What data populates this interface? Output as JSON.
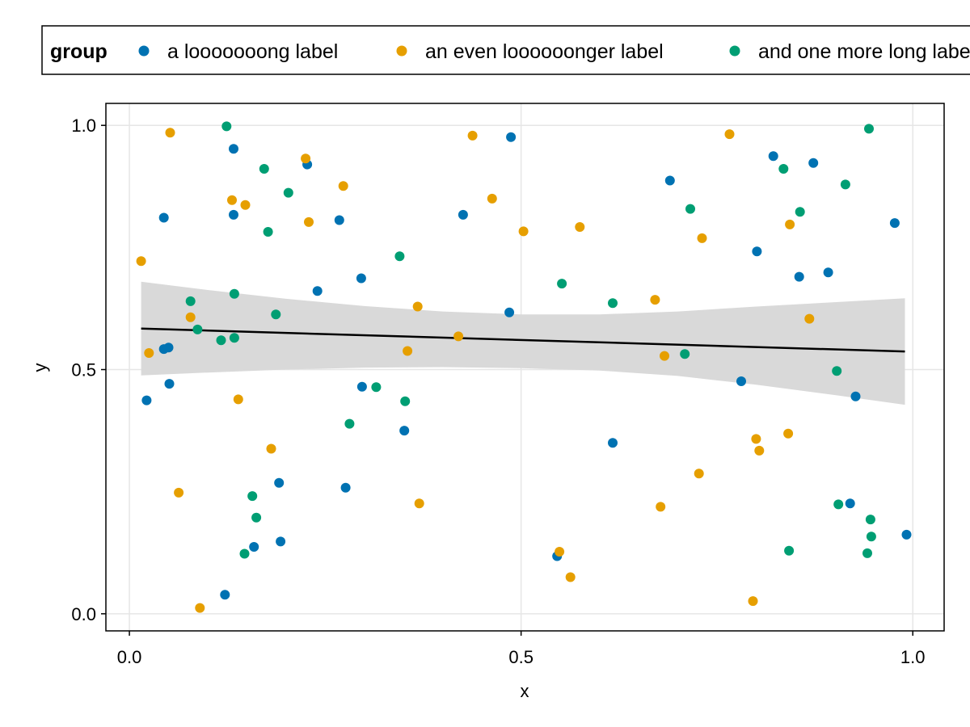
{
  "chart_data": {
    "type": "scatter",
    "xlabel": "x",
    "ylabel": "y",
    "xlim": [
      -0.03,
      1.04
    ],
    "ylim": [
      -0.035,
      1.045
    ],
    "xticks": [
      {
        "value": 0.0,
        "label": "0.0"
      },
      {
        "value": 0.5,
        "label": "0.5"
      },
      {
        "value": 1.0,
        "label": "1.0"
      }
    ],
    "yticks": [
      {
        "value": 0.0,
        "label": "0.0"
      },
      {
        "value": 0.5,
        "label": "0.5"
      },
      {
        "value": 1.0,
        "label": "1.0"
      }
    ],
    "grid": true,
    "legend": {
      "position": "top",
      "title": "group",
      "entries": [
        "a looooooong label",
        "an even loooooonger label",
        "and one more long label"
      ]
    },
    "series": [
      {
        "name": "a looooooong label",
        "color": "#0072b2",
        "points": [
          [
            0.022,
            0.437
          ],
          [
            0.044,
            0.811
          ],
          [
            0.044,
            0.542
          ],
          [
            0.05,
            0.545
          ],
          [
            0.051,
            0.471
          ],
          [
            0.122,
            0.039
          ],
          [
            0.133,
            0.952
          ],
          [
            0.133,
            0.817
          ],
          [
            0.159,
            0.137
          ],
          [
            0.191,
            0.268
          ],
          [
            0.193,
            0.148
          ],
          [
            0.227,
            0.92
          ],
          [
            0.24,
            0.661
          ],
          [
            0.268,
            0.806
          ],
          [
            0.276,
            0.258
          ],
          [
            0.296,
            0.687
          ],
          [
            0.297,
            0.465
          ],
          [
            0.351,
            0.375
          ],
          [
            0.426,
            0.817
          ],
          [
            0.485,
            0.617
          ],
          [
            0.487,
            0.976
          ],
          [
            0.546,
            0.118
          ],
          [
            0.617,
            0.35
          ],
          [
            0.69,
            0.887
          ],
          [
            0.781,
            0.476
          ],
          [
            0.801,
            0.742
          ],
          [
            0.822,
            0.937
          ],
          [
            0.855,
            0.69
          ],
          [
            0.873,
            0.923
          ],
          [
            0.892,
            0.699
          ],
          [
            0.92,
            0.226
          ],
          [
            0.927,
            0.445
          ],
          [
            0.977,
            0.8
          ],
          [
            0.992,
            0.162
          ]
        ]
      },
      {
        "name": "an even loooooonger label",
        "color": "#e69f00",
        "points": [
          [
            0.015,
            0.722
          ],
          [
            0.025,
            0.534
          ],
          [
            0.052,
            0.985
          ],
          [
            0.063,
            0.248
          ],
          [
            0.078,
            0.607
          ],
          [
            0.09,
            0.012
          ],
          [
            0.131,
            0.847
          ],
          [
            0.139,
            0.439
          ],
          [
            0.148,
            0.837
          ],
          [
            0.181,
            0.338
          ],
          [
            0.225,
            0.932
          ],
          [
            0.229,
            0.802
          ],
          [
            0.273,
            0.876
          ],
          [
            0.355,
            0.538
          ],
          [
            0.368,
            0.629
          ],
          [
            0.37,
            0.226
          ],
          [
            0.42,
            0.568
          ],
          [
            0.438,
            0.979
          ],
          [
            0.463,
            0.85
          ],
          [
            0.503,
            0.783
          ],
          [
            0.549,
            0.127
          ],
          [
            0.563,
            0.075
          ],
          [
            0.575,
            0.792
          ],
          [
            0.671,
            0.643
          ],
          [
            0.678,
            0.219
          ],
          [
            0.683,
            0.528
          ],
          [
            0.731,
            0.769
          ],
          [
            0.727,
            0.287
          ],
          [
            0.766,
            0.982
          ],
          [
            0.796,
            0.026
          ],
          [
            0.8,
            0.358
          ],
          [
            0.804,
            0.334
          ],
          [
            0.841,
            0.369
          ],
          [
            0.843,
            0.797
          ],
          [
            0.868,
            0.604
          ]
        ]
      },
      {
        "name": "and one more long label",
        "color": "#009e73",
        "points": [
          [
            0.078,
            0.64
          ],
          [
            0.087,
            0.582
          ],
          [
            0.117,
            0.56
          ],
          [
            0.124,
            0.998
          ],
          [
            0.134,
            0.655
          ],
          [
            0.134,
            0.565
          ],
          [
            0.147,
            0.123
          ],
          [
            0.157,
            0.241
          ],
          [
            0.162,
            0.197
          ],
          [
            0.172,
            0.911
          ],
          [
            0.177,
            0.782
          ],
          [
            0.187,
            0.613
          ],
          [
            0.203,
            0.862
          ],
          [
            0.281,
            0.389
          ],
          [
            0.315,
            0.464
          ],
          [
            0.345,
            0.732
          ],
          [
            0.352,
            0.435
          ],
          [
            0.552,
            0.676
          ],
          [
            0.617,
            0.636
          ],
          [
            0.709,
            0.532
          ],
          [
            0.716,
            0.829
          ],
          [
            0.835,
            0.911
          ],
          [
            0.842,
            0.129
          ],
          [
            0.856,
            0.823
          ],
          [
            0.903,
            0.497
          ],
          [
            0.905,
            0.224
          ],
          [
            0.914,
            0.879
          ],
          [
            0.942,
            0.124
          ],
          [
            0.944,
            0.993
          ],
          [
            0.946,
            0.193
          ],
          [
            0.947,
            0.158
          ]
        ]
      }
    ],
    "trend_line": {
      "color": "#000000",
      "x": [
        0.015,
        0.99
      ],
      "y": [
        0.584,
        0.537
      ]
    },
    "confidence_band": {
      "color": "#d9d9d9",
      "x": [
        0.015,
        0.1,
        0.2,
        0.3,
        0.4,
        0.5,
        0.6,
        0.7,
        0.8,
        0.9,
        0.99
      ],
      "upper": [
        0.68,
        0.663,
        0.645,
        0.63,
        0.619,
        0.613,
        0.613,
        0.619,
        0.629,
        0.638,
        0.646
      ],
      "lower": [
        0.488,
        0.494,
        0.5,
        0.504,
        0.505,
        0.503,
        0.498,
        0.487,
        0.469,
        0.448,
        0.428
      ]
    }
  }
}
